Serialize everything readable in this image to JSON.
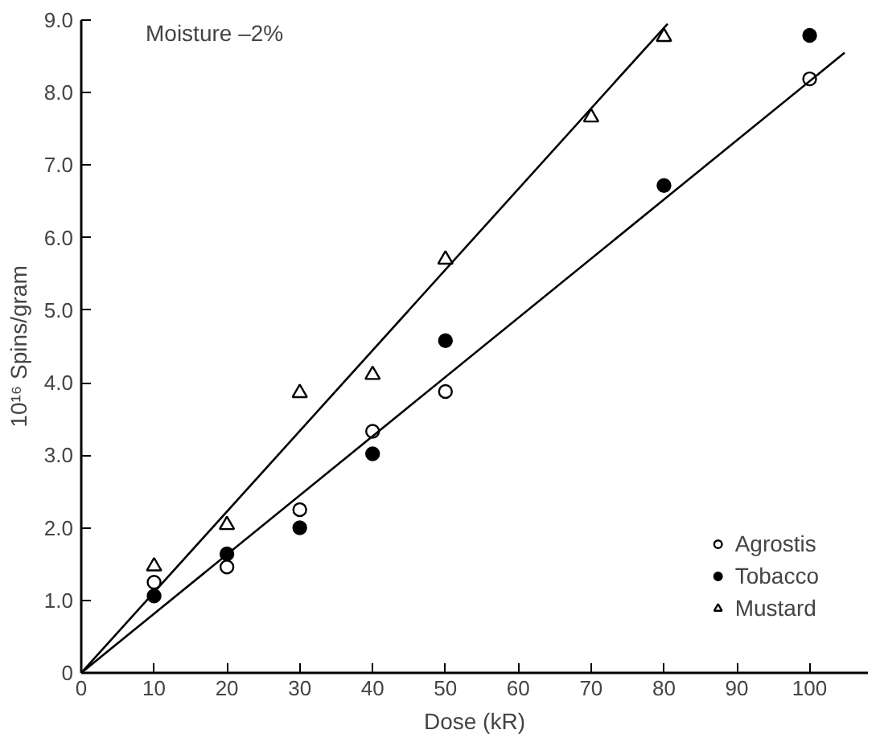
{
  "chart_data": {
    "type": "scatter",
    "xlabel": "Dose (kR)",
    "ylabel": "10¹⁶ Spins/gram",
    "annotations": [
      "Moisture –2%"
    ],
    "xlim": [
      0,
      108
    ],
    "ylim": [
      0,
      9.0
    ],
    "xticks": [
      0,
      10,
      20,
      30,
      40,
      50,
      60,
      70,
      80,
      90,
      100
    ],
    "yticks": [
      0,
      {
        "value": 1,
        "label": "1.0"
      },
      {
        "value": 2,
        "label": "2.0"
      },
      {
        "value": 3,
        "label": "3.0"
      },
      {
        "value": 4,
        "label": "4.0"
      },
      {
        "value": 5,
        "label": "5.0"
      },
      {
        "value": 6,
        "label": "6.0"
      },
      {
        "value": 7,
        "label": "7.0"
      },
      {
        "value": 8,
        "label": "8.0"
      },
      {
        "value": 9,
        "label": "9.0"
      }
    ],
    "grid": false,
    "legend": "bottom right",
    "series": [
      {
        "name": "Agrostis",
        "color": "#000000",
        "marker": "circle",
        "x": [
          10,
          20,
          30,
          40,
          50,
          100
        ],
        "values": [
          1.25,
          1.46,
          2.25,
          3.33,
          3.88,
          8.19
        ]
      },
      {
        "name": "Tobacco",
        "color": "#000000",
        "marker": "circle",
        "x": [
          10,
          20,
          30,
          40,
          50,
          80,
          100
        ],
        "values": [
          1.06,
          1.64,
          2.0,
          3.02,
          4.58,
          6.72,
          8.79
        ]
      },
      {
        "name": "Mustard",
        "color": "#000000",
        "marker": "triangle",
        "x": [
          10,
          20,
          30,
          40,
          50,
          70,
          80
        ],
        "values": [
          1.47,
          2.04,
          3.86,
          4.11,
          5.7,
          7.66,
          8.77
        ]
      },
      {
        "type": "line",
        "color": "#000000",
        "x": [
          0,
          80.5
        ],
        "values": [
          0,
          8.95
        ]
      },
      {
        "type": "line",
        "color": "#000000",
        "x": [
          0,
          104.8
        ],
        "values": [
          0,
          8.55
        ]
      }
    ]
  }
}
